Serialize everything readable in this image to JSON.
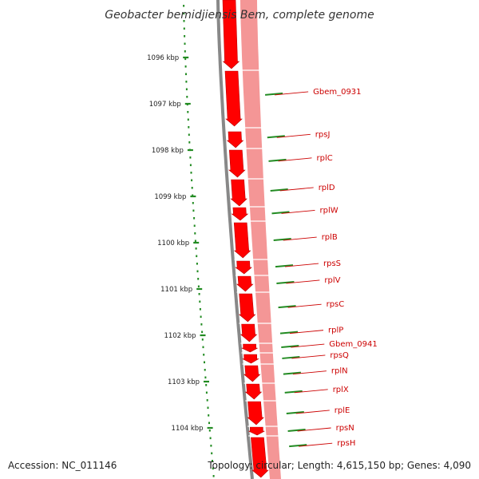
{
  "title": "Geobacter bemidjiensis Bem, complete genome",
  "ruler": [
    {
      "label": "1096 kbp",
      "pos": 1096
    },
    {
      "label": "1097 kbp",
      "pos": 1097
    },
    {
      "label": "1098 kbp",
      "pos": 1098
    },
    {
      "label": "1099 kbp",
      "pos": 1099
    },
    {
      "label": "1100 kbp",
      "pos": 1100
    },
    {
      "label": "1101 kbp",
      "pos": 1101
    },
    {
      "label": "1102 kbp",
      "pos": 1102
    },
    {
      "label": "1103 kbp",
      "pos": 1103
    },
    {
      "label": "1104 kbp",
      "pos": 1104
    }
  ],
  "genes": [
    {
      "name": "Gbem_0931",
      "pos": 1096.74
    },
    {
      "name": "rpsJ",
      "pos": 1097.66
    },
    {
      "name": "rplC",
      "pos": 1098.17
    },
    {
      "name": "rplD",
      "pos": 1098.81
    },
    {
      "name": "rplW",
      "pos": 1099.3
    },
    {
      "name": "rplB",
      "pos": 1099.88
    },
    {
      "name": "rpsS",
      "pos": 1100.45
    },
    {
      "name": "rplV",
      "pos": 1100.81
    },
    {
      "name": "rpsC",
      "pos": 1101.33
    },
    {
      "name": "rplP",
      "pos": 1101.89
    },
    {
      "name": "Gbem_0941",
      "pos": 1102.19
    },
    {
      "name": "rpsQ",
      "pos": 1102.43
    },
    {
      "name": "rplN",
      "pos": 1102.77
    },
    {
      "name": "rplX",
      "pos": 1103.17
    },
    {
      "name": "rplE",
      "pos": 1103.62
    },
    {
      "name": "rpsN",
      "pos": 1104.0
    },
    {
      "name": "rpsH",
      "pos": 1104.33
    }
  ],
  "colors": {
    "cds": "#ff0000",
    "cds_dark": "#bb0000",
    "band": "#f49696",
    "backbone": "#888888",
    "tick": "#228b22",
    "label": "#cc0000"
  },
  "footer": {
    "accession": "Accession: NC_011146",
    "summary": "Topology: circular; Length: 4,615,150 bp; Genes: 4,090"
  }
}
